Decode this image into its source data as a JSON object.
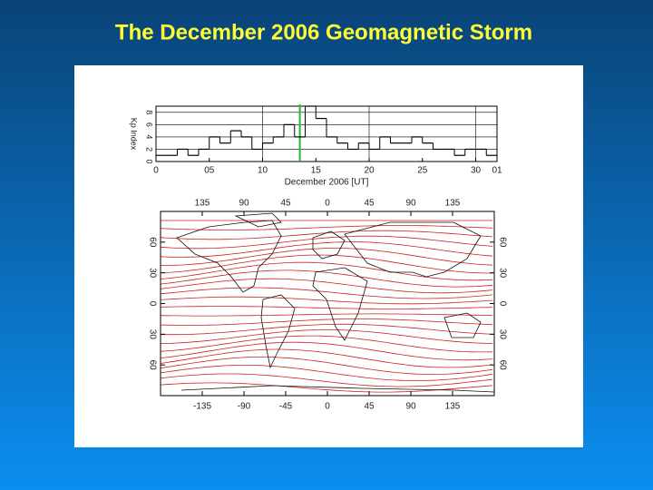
{
  "title": "The December 2006 Geomagnetic Storm",
  "chart_data": [
    {
      "type": "step",
      "ylabel": "Kp Index",
      "xlabel": "December 2006 [UT]",
      "x": [
        0,
        1,
        2,
        3,
        4,
        5,
        6,
        7,
        8,
        9,
        10,
        11,
        12,
        13,
        14,
        15,
        16,
        17,
        18,
        19,
        20,
        21,
        22,
        23,
        24,
        25,
        26,
        27,
        28,
        29,
        30,
        31
      ],
      "values": [
        1,
        1,
        2,
        1,
        2,
        4,
        3,
        5,
        4,
        2,
        3,
        4,
        6,
        4,
        9,
        7,
        4,
        3,
        2,
        3,
        2,
        4,
        3,
        3,
        4,
        3,
        2,
        2,
        1,
        2,
        2,
        1
      ],
      "color": "#000000",
      "highlight_x": 13.5,
      "highlight_color": "#22bb33",
      "xlim": [
        0,
        32
      ],
      "xticks": [
        0,
        {
          "value": 5,
          "label": "05"
        },
        10,
        15,
        20,
        25,
        30,
        {
          "value": 32,
          "label": "01"
        }
      ],
      "ylim": [
        0,
        9
      ],
      "yticks": [
        0,
        2,
        4,
        6,
        8
      ],
      "grid": true
    },
    {
      "type": "map",
      "contour_color": "#cc2222",
      "xlim": [
        -180,
        180
      ],
      "ylim": [
        -90,
        90
      ],
      "xticks_top": [
        {
          "value": -135,
          "label": "135"
        },
        {
          "value": -90,
          "label": "90"
        },
        {
          "value": -45,
          "label": "45"
        },
        0,
        45,
        90,
        135
      ],
      "xticks": [
        -135,
        -90,
        -45,
        0,
        45,
        90,
        135
      ],
      "yticks": [
        60,
        30,
        0,
        {
          "value": -30,
          "label": "30"
        },
        {
          "value": -60,
          "label": "60"
        }
      ]
    }
  ]
}
